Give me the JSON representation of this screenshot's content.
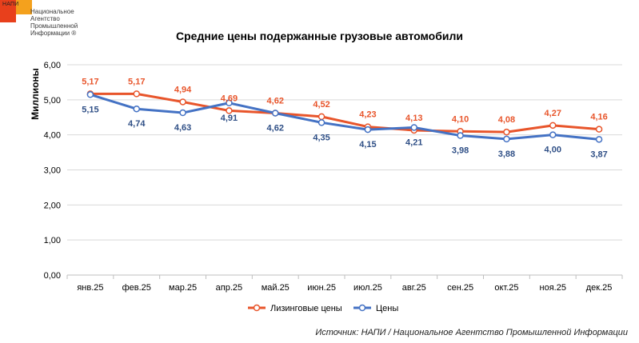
{
  "logo": {
    "short": "НАПИ",
    "lines": [
      "Национальное",
      "Агентство",
      "Промышленной",
      "Информации ®"
    ]
  },
  "source": "Источник: НАПИ / Национальное Агентство Промышленной Информации",
  "colors": {
    "leasing": "#e8552b",
    "prices": "#4472c4",
    "grid": "#d9d9d9",
    "axis": "#595959"
  },
  "chart_data": {
    "type": "line",
    "title": "Средние цены подержанные грузовые автомобили",
    "ylabel": "Миллионы",
    "xlabel": "",
    "ylim": [
      0,
      6
    ],
    "yticks": [
      "0,00",
      "1,00",
      "2,00",
      "3,00",
      "4,00",
      "5,00",
      "6,00"
    ],
    "categories": [
      "янв.25",
      "фев.25",
      "мар.25",
      "апр.25",
      "май.25",
      "июн.25",
      "июл.25",
      "авг.25",
      "сен.25",
      "окт.25",
      "ноя.25",
      "дек.25"
    ],
    "series": [
      {
        "name": "Лизинговые цены",
        "values": [
          5.17,
          5.17,
          4.94,
          4.69,
          4.62,
          4.52,
          4.23,
          4.13,
          4.1,
          4.08,
          4.27,
          4.16
        ],
        "labels": [
          "5,17",
          "5,17",
          "4,94",
          "4,69",
          "4,62",
          "4,52",
          "4,23",
          "4,13",
          "4,10",
          "4,08",
          "4,27",
          "4,16"
        ]
      },
      {
        "name": "Цены",
        "values": [
          5.15,
          4.74,
          4.63,
          4.91,
          4.62,
          4.35,
          4.15,
          4.21,
          3.98,
          3.88,
          4.0,
          3.87
        ],
        "labels": [
          "5,15",
          "4,74",
          "4,63",
          "4,91",
          "4,62",
          "4,35",
          "4,15",
          "4,21",
          "3,98",
          "3,88",
          "4,00",
          "3,87"
        ]
      }
    ],
    "legend": "bottom-center"
  }
}
